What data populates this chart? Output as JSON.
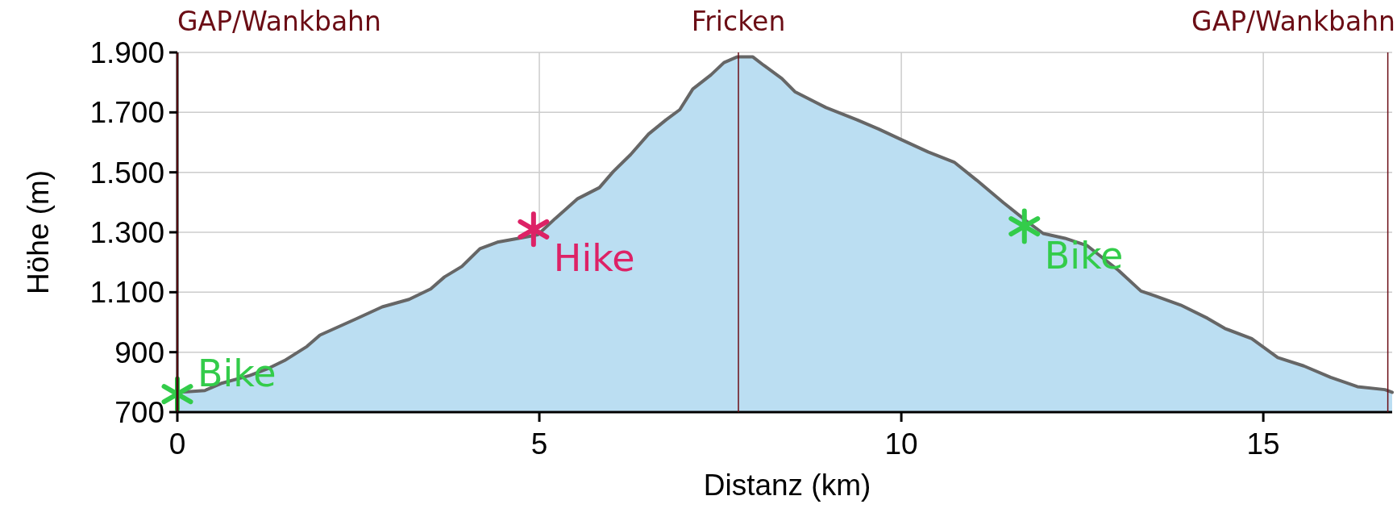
{
  "chart_data": {
    "type": "area",
    "xlabel": "Distanz (km)",
    "ylabel": "Höhe (m)",
    "xlim": [
      0,
      16.78
    ],
    "xticks": [
      0,
      5,
      10,
      15
    ],
    "ylim": [
      700,
      1900
    ],
    "yticks": [
      {
        "value": 700,
        "label": "700"
      },
      {
        "value": 900,
        "label": "900"
      },
      {
        "value": 1100,
        "label": "1.100"
      },
      {
        "value": 1300,
        "label": "1.300"
      },
      {
        "value": 1500,
        "label": "1.500"
      },
      {
        "value": 1700,
        "label": "1.700"
      },
      {
        "value": 1900,
        "label": "1.900"
      }
    ],
    "grid": true,
    "legend": "center",
    "ref_lines": [
      {
        "axis": "x",
        "value": 0,
        "label": "GAP/Wankbahn",
        "color": "#6b0d15"
      },
      {
        "axis": "x",
        "value": 7.75,
        "label": "Fricken",
        "color": "#6b0d15"
      },
      {
        "axis": "x",
        "value": 16.72,
        "label": "GAP/Wankbahn",
        "color": "#6b0d15"
      }
    ],
    "series": [
      {
        "color": "#666666",
        "x": [
          0,
          0.38,
          0.62,
          1.0,
          1.24,
          1.48,
          1.79,
          1.97,
          2.46,
          2.83,
          3.2,
          3.5,
          3.69,
          3.93,
          4.18,
          4.42,
          4.79,
          4.98,
          5.22,
          5.53,
          5.83,
          6.02,
          6.26,
          6.51,
          6.75,
          6.94,
          7.12,
          7.37,
          7.55,
          7.73,
          7.95,
          8.1,
          8.35,
          8.53,
          8.96,
          9.39,
          9.69,
          10.0,
          10.37,
          10.73,
          11.04,
          11.41,
          11.72,
          11.96,
          12.26,
          12.57,
          13.0,
          13.31,
          13.49,
          13.86,
          14.23,
          14.47,
          14.84,
          15.2,
          15.56,
          15.93,
          16.3,
          16.68,
          16.78
        ],
        "values": [
          766,
          772,
          797,
          822,
          844,
          872,
          919,
          957,
          1010,
          1051,
          1076,
          1111,
          1151,
          1186,
          1245,
          1267,
          1283,
          1292,
          1346,
          1412,
          1449,
          1502,
          1559,
          1628,
          1675,
          1709,
          1778,
          1825,
          1866,
          1885,
          1885,
          1857,
          1813,
          1769,
          1716,
          1675,
          1644,
          1609,
          1568,
          1534,
          1474,
          1399,
          1339,
          1296,
          1280,
          1255,
          1173,
          1104,
          1089,
          1057,
          1013,
          979,
          945,
          882,
          854,
          816,
          785,
          775,
          766
        ]
      },
      {
        "type": "scatter",
        "name": "Bike",
        "color": "#33cc4a",
        "marker": "cross",
        "x": [
          0,
          11.7
        ],
        "values": [
          760,
          1320
        ]
      },
      {
        "type": "scatter",
        "name": "Hike",
        "color": "#dd2266",
        "marker": "cross",
        "x": [
          4.92
        ],
        "values": [
          1310
        ]
      }
    ]
  }
}
